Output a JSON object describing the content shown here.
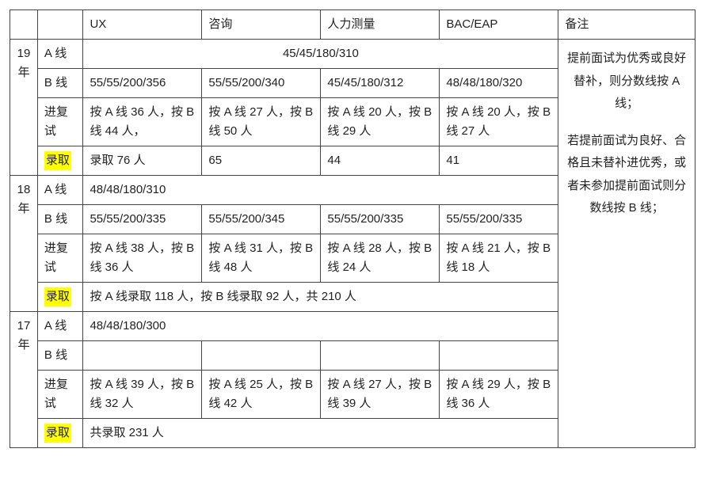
{
  "header": {
    "ux": "UX",
    "zixun": "咨询",
    "renli": "人力测量",
    "bac": "BAC/EAP",
    "remark": "备注"
  },
  "labels": {
    "aLine": "A 线",
    "bLine": "B 线",
    "jinfushi": "进复试",
    "luqu": "录取"
  },
  "y19": {
    "year": "19年",
    "a_merged": "45/45/180/310",
    "b": {
      "ux": "55/55/200/356",
      "zixun": "55/55/200/340",
      "renli": "45/45/180/312",
      "bac": "48/48/180/320"
    },
    "jfs": {
      "ux": "按 A 线 36 人，按 B 线 44 人，",
      "zixun": "按 A 线 27 人，按 B 线 50 人",
      "renli": "按 A 线 20 人，按 B 线 29 人",
      "bac": "按 A 线 20 人，按 B 线 27 人"
    },
    "luqu": {
      "ux": "录取 76 人",
      "zixun": "65",
      "renli": "44",
      "bac": "41"
    }
  },
  "y18": {
    "year": "18年",
    "a_merged": "48/48/180/310",
    "b": {
      "ux": "55/55/200/335",
      "zixun": "55/55/200/345",
      "renli": "55/55/200/335",
      "bac": "55/55/200/335"
    },
    "jfs": {
      "ux": "按 A 线 38 人，按 B 线 36 人",
      "zixun": "按 A 线 31 人，按 B 线 48 人",
      "renli": "按 A 线 28 人，按 B 线 24 人",
      "bac": "按 A 线 21 人，按 B 线 18 人"
    },
    "luqu_merged": "按 A 线录取 118 人，按 B 线录取 92 人，共 210 人"
  },
  "y17": {
    "year": "17年",
    "a_merged": "48/48/180/300",
    "b": {
      "ux": "",
      "zixun": "",
      "renli": "",
      "bac": ""
    },
    "jfs": {
      "ux": "按 A 线 39 人，按 B 线 32 人",
      "zixun": "按 A 线 25 人，按 B 线 42 人",
      "renli": "按 A 线 27 人，按 B 线 39 人",
      "bac": "按 A 线 29 人，按 B 线 36 人"
    },
    "luqu_merged": "共录取 231 人"
  },
  "remark": {
    "p1": "提前面试为优秀或良好替补，则分数线按 A 线；",
    "p2": "若提前面试为良好、合格且未替补进优秀，或者未参加提前面试则分数线按 B 线；"
  },
  "style": {
    "highlight_color": "#ffff00",
    "border_color": "#444444",
    "text_color": "#222222",
    "font_size_pt": 15
  }
}
